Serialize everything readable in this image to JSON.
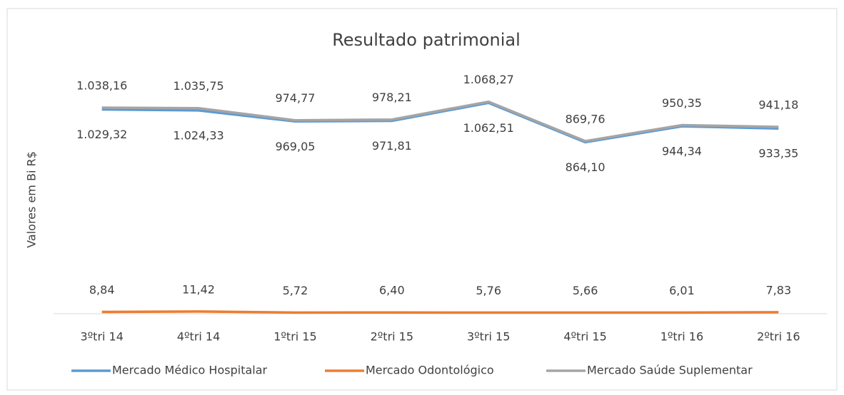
{
  "chart_data": {
    "type": "line",
    "title": "Resultado patrimonial",
    "y_label": "Valores em Bi R$",
    "categories": [
      "3ºtri 14",
      "4ºtri 14",
      "1ºtri 15",
      "2ºtri 15",
      "3ºtri 15",
      "4ºtri 15",
      "1ºtri 16",
      "2ºtri 16"
    ],
    "ylim": [
      0,
      1200
    ],
    "series": [
      {
        "name": "Mercado Médico Hospitalar",
        "color": "#5b9bd5",
        "values": [
          1029.32,
          1024.33,
          969.05,
          971.81,
          1062.51,
          864.1,
          944.34,
          933.35
        ],
        "value_labels": [
          "1.029,32",
          "1.024,33",
          "969,05",
          "971,81",
          "1.062,51",
          "864,10",
          "944,34",
          "933,35"
        ]
      },
      {
        "name": "Mercado Odontológico",
        "color": "#ed7d31",
        "values": [
          8.84,
          11.42,
          5.72,
          6.4,
          5.76,
          5.66,
          6.01,
          7.83
        ],
        "value_labels": [
          "8,84",
          "11,42",
          "5,72",
          "6,40",
          "5,76",
          "5,66",
          "6,01",
          "7,83"
        ]
      },
      {
        "name": "Mercado Saúde Suplementar",
        "color": "#a5a5a5",
        "values": [
          1038.16,
          1035.75,
          974.77,
          978.21,
          1068.27,
          869.76,
          950.35,
          941.18
        ],
        "value_labels": [
          "1.038,16",
          "1.035,75",
          "974,77",
          "978,21",
          "1.068,27",
          "869,76",
          "950,35",
          "941,18"
        ]
      }
    ]
  }
}
